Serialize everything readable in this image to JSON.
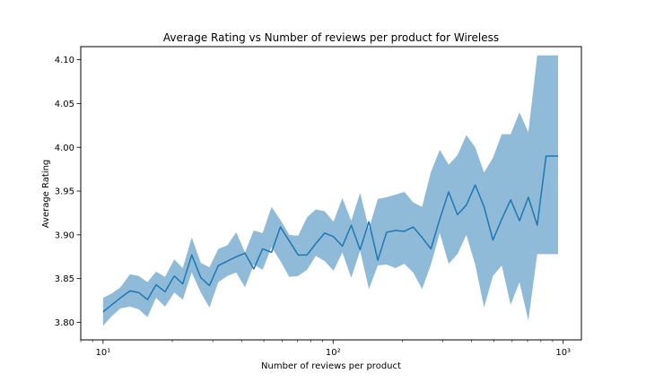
{
  "chart_data": {
    "type": "line",
    "title": "Average Rating vs Number of reviews per product for Wireless",
    "xlabel": "Number of reviews per product",
    "ylabel": "Average Rating",
    "xscale": "log",
    "xlim": [
      8,
      1200
    ],
    "ylim": [
      3.78,
      4.115
    ],
    "grid": false,
    "x_ticks": [
      {
        "value": 10,
        "label": "10¹"
      },
      {
        "value": 100,
        "label": "10²"
      },
      {
        "value": 1000,
        "label": "10³"
      }
    ],
    "y_ticks": [
      3.8,
      3.85,
      3.9,
      3.95,
      4.0,
      4.05,
      4.1
    ],
    "y_tick_labels": [
      "3.80",
      "3.85",
      "3.90",
      "3.95",
      "4.00",
      "4.05",
      "4.10"
    ],
    "colors": {
      "line": "#1f77b4",
      "band": "#1f77b4",
      "band_opacity": 0.5
    },
    "series": [
      {
        "x": [
          10.0,
          10.9,
          11.9,
          13.1,
          14.3,
          15.6,
          17.0,
          18.6,
          20.4,
          22.2,
          24.3,
          26.6,
          29.0,
          31.7,
          34.7,
          37.9,
          41.4,
          45.2,
          49.4,
          54.0,
          59.0,
          64.5,
          70.5,
          77.0,
          84.1,
          91.9,
          100.4,
          109.7,
          119.9,
          131.0,
          143.1,
          156.4,
          170.9,
          186.7,
          204.0,
          222.9,
          243.6,
          266.2,
          290.8,
          317.8,
          347.2,
          379.4,
          414.6,
          453.0,
          495.0,
          540.9,
          591.0,
          645.8,
          705.7,
          771.2,
          842.7,
          920.7,
          950.0
        ],
        "y": [
          3.812,
          3.82,
          3.828,
          3.836,
          3.834,
          3.826,
          3.843,
          3.835,
          3.853,
          3.844,
          3.877,
          3.851,
          3.842,
          3.865,
          3.87,
          3.875,
          3.879,
          3.861,
          3.884,
          3.88,
          3.909,
          3.893,
          3.877,
          3.877,
          3.89,
          3.902,
          3.898,
          3.887,
          3.911,
          3.883,
          3.915,
          3.871,
          3.903,
          3.905,
          3.904,
          3.909,
          3.897,
          3.884,
          3.918,
          3.949,
          3.923,
          3.934,
          3.957,
          3.932,
          3.894,
          3.918,
          3.94,
          3.916,
          3.943,
          3.911,
          3.99,
          3.99,
          3.99
        ],
        "upper": [
          3.828,
          3.833,
          3.84,
          3.855,
          3.853,
          3.846,
          3.858,
          3.852,
          3.872,
          3.862,
          3.897,
          3.868,
          3.863,
          3.884,
          3.888,
          3.903,
          3.88,
          3.905,
          3.902,
          3.932,
          3.917,
          3.9,
          3.899,
          3.92,
          3.929,
          3.927,
          3.915,
          3.942,
          3.916,
          3.948,
          3.907,
          3.941,
          3.943,
          3.946,
          3.949,
          3.937,
          3.932,
          3.972,
          3.997,
          3.98,
          3.991,
          4.014,
          4.0,
          3.971,
          3.988,
          4.015,
          4.015,
          4.04,
          4.017,
          4.105,
          4.105,
          4.105,
          4.105
        ],
        "lower": [
          3.796,
          3.807,
          3.816,
          3.818,
          3.815,
          3.806,
          3.828,
          3.818,
          3.834,
          3.826,
          3.857,
          3.834,
          3.817,
          3.846,
          3.853,
          3.857,
          3.84,
          3.866,
          3.86,
          3.886,
          3.87,
          3.852,
          3.853,
          3.86,
          3.876,
          3.87,
          3.859,
          3.88,
          3.851,
          3.882,
          3.838,
          3.865,
          3.866,
          3.862,
          3.867,
          3.857,
          3.838,
          3.866,
          3.902,
          3.867,
          3.878,
          3.9,
          3.866,
          3.817,
          3.853,
          3.865,
          3.82,
          3.846,
          3.802,
          3.878,
          3.878,
          3.878,
          3.878
        ]
      }
    ]
  }
}
